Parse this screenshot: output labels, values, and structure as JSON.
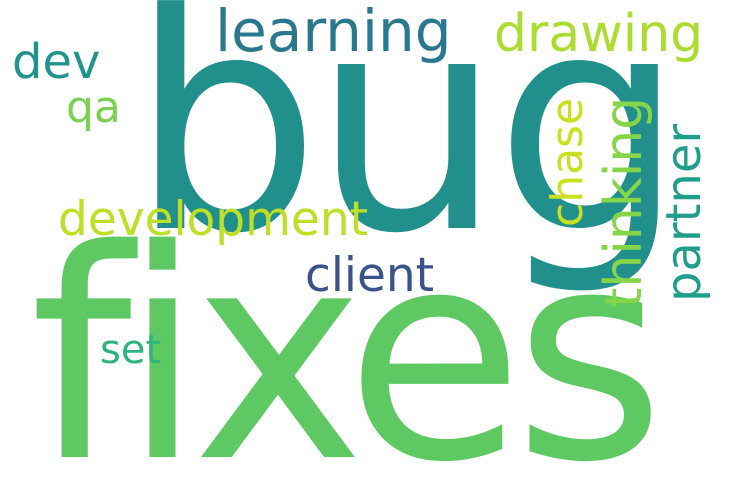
{
  "words": {
    "bug": {
      "text": "bug",
      "color": "#21908d"
    },
    "fixes": {
      "text": "fixes",
      "color": "#5ec962"
    },
    "learning": {
      "text": "learning",
      "color": "#2a788e"
    },
    "drawing": {
      "text": "drawing",
      "color": "#addc30"
    },
    "dev": {
      "text": "dev",
      "color": "#22928c"
    },
    "qa": {
      "text": "qa",
      "color": "#7ad151"
    },
    "development": {
      "text": "development",
      "color": "#bddf26"
    },
    "client": {
      "text": "client",
      "color": "#3b528b"
    },
    "set": {
      "text": "set",
      "color": "#2fb47c"
    },
    "chase": {
      "text": "chase",
      "color": "#c8e020"
    },
    "thinking": {
      "text": "thinking",
      "color": "#86d549"
    },
    "partner": {
      "text": "partner",
      "color": "#1f9e89"
    }
  }
}
